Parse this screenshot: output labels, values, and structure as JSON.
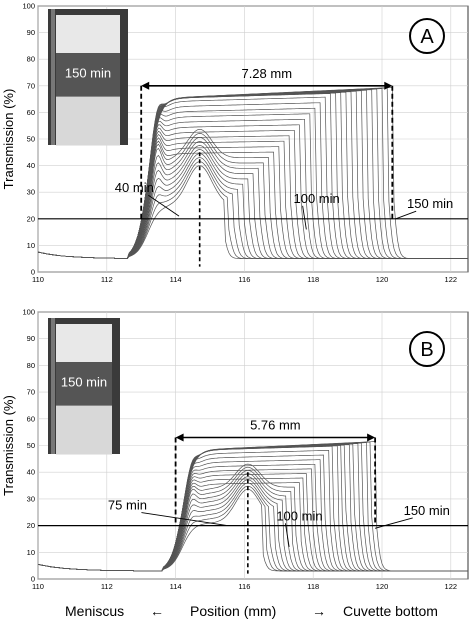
{
  "chart_data": [
    {
      "type": "line",
      "panel_label": "A",
      "ylabel": "Transmission (%)",
      "xlim": [
        110,
        122.5
      ],
      "ylim": [
        0,
        100
      ],
      "x_ticks": [
        110,
        112,
        114,
        116,
        118,
        120,
        122
      ],
      "y_ticks": [
        0,
        10,
        20,
        30,
        40,
        50,
        60,
        70,
        80,
        90,
        100
      ],
      "grid": true,
      "hline": 20,
      "inset_label": "150 min",
      "band_width_label": "7.28 mm",
      "band_start": 113.0,
      "band_end": 120.3,
      "band_arrow_y": 70,
      "center_x": 114.7,
      "center_top": 45,
      "annotations": [
        {
          "text": "40 min",
          "x": 112.8,
          "y": 30,
          "tx": 114.1,
          "ty": 21
        },
        {
          "text": "100 min",
          "x": 118.1,
          "y": 26,
          "tx": 117.8,
          "ty": 16
        },
        {
          "text": "150 min",
          "x": 121.4,
          "y": 24,
          "tx": 120.4,
          "ty": 20
        }
      ],
      "curves": {
        "count": 34,
        "front_first": 115.4,
        "front_last": 120.3,
        "early_peak_x": 114.7,
        "early_peak_y": 25
      }
    },
    {
      "type": "line",
      "panel_label": "B",
      "ylabel": "Transmission (%)",
      "xlim": [
        110,
        122.5
      ],
      "ylim": [
        0,
        100
      ],
      "x_ticks": [
        110,
        112,
        114,
        116,
        118,
        120,
        122
      ],
      "y_ticks": [
        0,
        10,
        20,
        30,
        40,
        50,
        60,
        70,
        80,
        90,
        100
      ],
      "grid": true,
      "hline": 20,
      "inset_label": "150 min",
      "band_width_label": "5.76 mm",
      "band_start": 114.0,
      "band_end": 119.8,
      "band_arrow_y": 53,
      "center_x": 116.1,
      "center_top": 40,
      "annotations": [
        {
          "text": "75 min",
          "x": 112.6,
          "y": 26,
          "tx": 115.5,
          "ty": 20
        },
        {
          "text": "100 min",
          "x": 117.6,
          "y": 22,
          "tx": 117.3,
          "ty": 12
        },
        {
          "text": "150 min",
          "x": 121.3,
          "y": 24,
          "tx": 119.8,
          "ty": 19
        }
      ],
      "curves": {
        "count": 28,
        "front_first": 116.5,
        "front_last": 119.8,
        "early_peak_x": 116.1,
        "early_peak_y": 21
      }
    }
  ],
  "xaxis_labels": {
    "left": "Meniscus",
    "left_arrow": "←",
    "center": "Position (mm)",
    "right_arrow": "→",
    "right": "Cuvette bottom"
  }
}
